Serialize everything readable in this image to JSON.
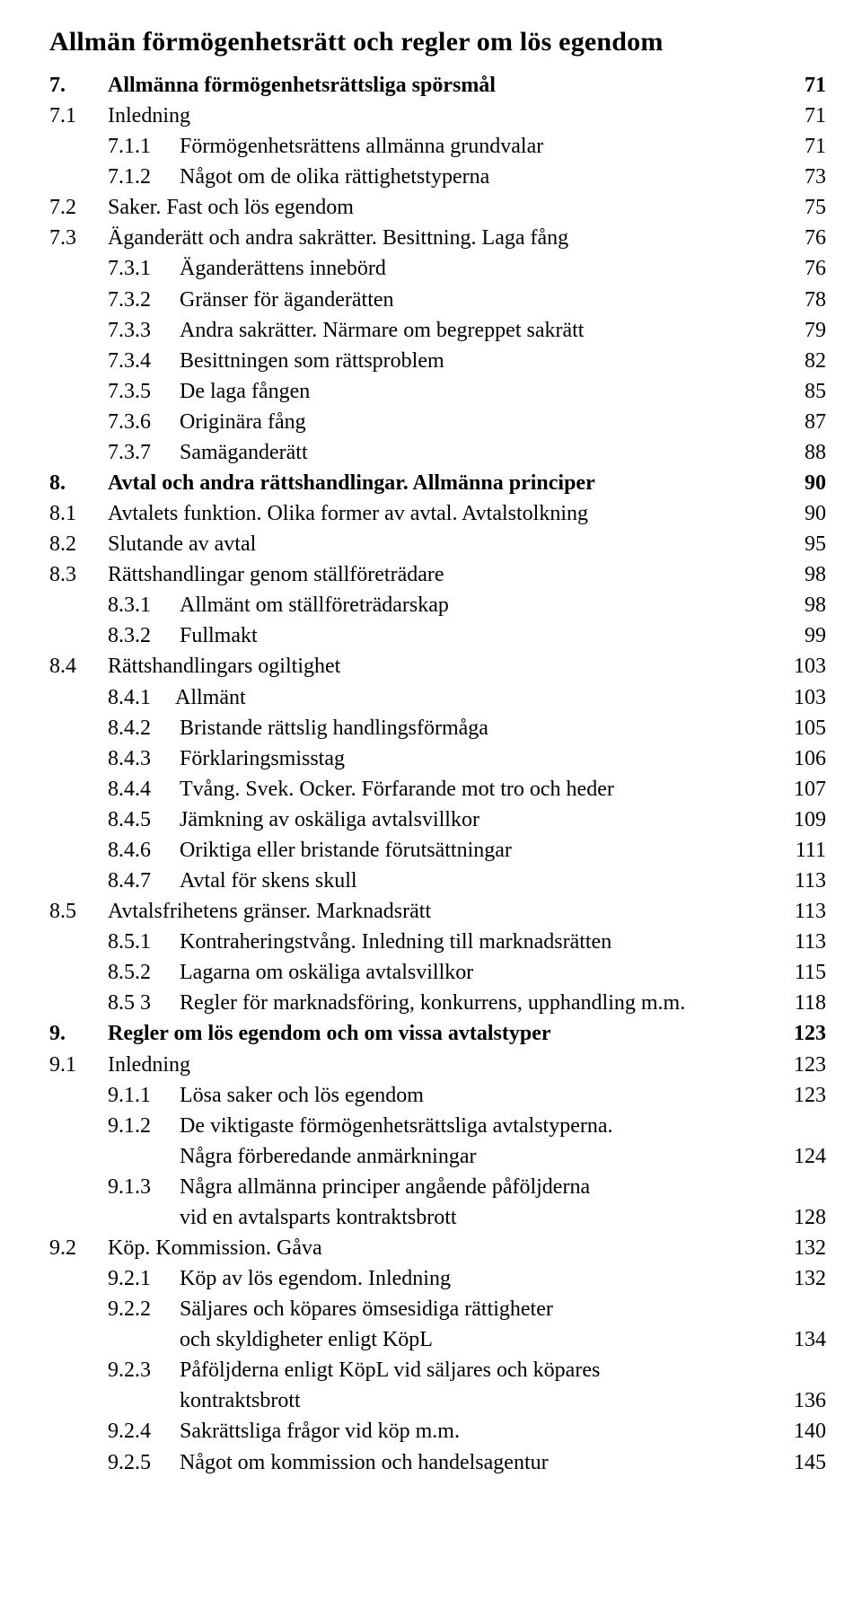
{
  "part_title": "Allmän förmögenhetsrätt och regler om lös egendom",
  "entries": [
    {
      "num": "7.",
      "label": "Allmänna förmögenhetsrättsliga spörsmål",
      "page": "71",
      "level": 0,
      "bold": true
    },
    {
      "num": "7.1",
      "label": "Inledning",
      "page": "71",
      "level": 1
    },
    {
      "num": "7.1.1",
      "label": "Förmögenhetsrättens allmänna grundvalar",
      "page": "71",
      "level": 2
    },
    {
      "num": "7.1.2",
      "label": "Något om de olika rättighetstyperna",
      "page": "73",
      "level": 2
    },
    {
      "num": "7.2",
      "label": "Saker. Fast och lös egendom",
      "page": "75",
      "level": 1
    },
    {
      "num": "7.3",
      "label": "Äganderätt och andra sakrätter. Besittning. Laga fång",
      "page": "76",
      "level": 1
    },
    {
      "num": "7.3.1",
      "label": "Äganderättens innebörd",
      "page": "76",
      "level": 2
    },
    {
      "num": "7.3.2",
      "label": "Gränser för äganderätten",
      "page": "78",
      "level": 2
    },
    {
      "num": "7.3.3",
      "label": "Andra sakrätter. Närmare om begreppet sakrätt",
      "page": "79",
      "level": 2
    },
    {
      "num": "7.3.4",
      "label": "Besittningen som rättsproblem",
      "page": "82",
      "level": 2
    },
    {
      "num": "7.3.5",
      "label": "De laga fången",
      "page": "85",
      "level": 2
    },
    {
      "num": "7.3.6",
      "label": "Originära fång",
      "page": "87",
      "level": 2
    },
    {
      "num": "7.3.7",
      "label": "Samäganderätt",
      "page": "88",
      "level": 2
    },
    {
      "num": "8.",
      "label": "Avtal och andra rättshandlingar. Allmänna principer",
      "page": "90",
      "level": 0,
      "bold": true
    },
    {
      "num": "8.1",
      "label": "Avtalets funktion. Olika former av avtal. Avtalstolkning",
      "page": "90",
      "level": 1
    },
    {
      "num": "8.2",
      "label": "Slutande av avtal",
      "page": "95",
      "level": 1
    },
    {
      "num": "8.3",
      "label": "Rättshandlingar genom ställföreträdare",
      "page": "98",
      "level": 1
    },
    {
      "num": "8.3.1",
      "label": "Allmänt om ställföreträdarskap",
      "page": "98",
      "level": 2
    },
    {
      "num": "8.3.2",
      "label": "Fullmakt",
      "page": "99",
      "level": 2
    },
    {
      "num": "8.4",
      "label": "Rättshandlingars ogiltighet",
      "page": "103",
      "level": 1
    },
    {
      "num": "8.4.1",
      "label": "Allmänt",
      "page": "103",
      "level": "2b"
    },
    {
      "num": "8.4.2",
      "label": "Bristande rättslig handlingsförmåga",
      "page": "105",
      "level": 2
    },
    {
      "num": "8.4.3",
      "label": "Förklaringsmisstag",
      "page": "106",
      "level": 2
    },
    {
      "num": "8.4.4",
      "label": "Tvång. Svek. Ocker. Förfarande mot tro och heder",
      "page": "107",
      "level": 2
    },
    {
      "num": "8.4.5",
      "label": "Jämkning av oskäliga avtalsvillkor",
      "page": "109",
      "level": 2
    },
    {
      "num": "8.4.6",
      "label": "Oriktiga eller bristande förutsättningar",
      "page": "111",
      "level": 2
    },
    {
      "num": "8.4.7",
      "label": "Avtal för skens skull",
      "page": "113",
      "level": 2
    },
    {
      "num": "8.5",
      "label": "Avtalsfrihetens gränser. Marknadsrätt",
      "page": "113",
      "level": 1
    },
    {
      "num": "8.5.1",
      "label": "Kontraheringstvång. Inledning till marknadsrätten",
      "page": "113",
      "level": 2
    },
    {
      "num": "8.5.2",
      "label": "Lagarna om oskäliga avtalsvillkor",
      "page": "115",
      "level": 2
    },
    {
      "num": "8.5 3",
      "label": "Regler för marknadsföring, konkurrens, upphandling m.m.",
      "page": "118",
      "level": 2
    },
    {
      "num": "9.",
      "label": "Regler om lös egendom och om vissa avtalstyper",
      "page": "123",
      "level": 0,
      "bold": true
    },
    {
      "num": "9.1",
      "label": "Inledning",
      "page": "123",
      "level": 1
    },
    {
      "num": "9.1.1",
      "label": "Lösa saker och lös egendom",
      "page": "123",
      "level": 2
    },
    {
      "num": "9.1.2",
      "label": "De viktigaste förmögenhetsrättsliga avtalstyperna.",
      "page": "",
      "level": 2
    },
    {
      "num": "",
      "label": "Några förberedande anmärkningar",
      "page": "124",
      "level": "cont"
    },
    {
      "num": "9.1.3",
      "label": "Några allmänna principer angående påföljderna",
      "page": "",
      "level": 2
    },
    {
      "num": "",
      "label": "vid en avtalsparts kontraktsbrott",
      "page": "128",
      "level": "cont"
    },
    {
      "num": "9.2",
      "label": "Köp. Kommission. Gåva",
      "page": "132",
      "level": 1
    },
    {
      "num": "9.2.1",
      "label": "Köp av lös egendom. Inledning",
      "page": "132",
      "level": 2
    },
    {
      "num": "9.2.2",
      "label": "Säljares och köpares ömsesidiga rättigheter",
      "page": "",
      "level": 2
    },
    {
      "num": "",
      "label": "och skyldigheter enligt KöpL",
      "page": "134",
      "level": "cont"
    },
    {
      "num": "9.2.3",
      "label": "Påföljderna enligt KöpL vid säljares och köpares",
      "page": "",
      "level": 2
    },
    {
      "num": "",
      "label": "kontraktsbrott",
      "page": "136",
      "level": "cont"
    },
    {
      "num": "9.2.4",
      "label": "Sakrättsliga frågor vid köp m.m.",
      "page": "140",
      "level": 2
    },
    {
      "num": "9.2.5",
      "label": "Något om kommission och handelsagentur",
      "page": "145",
      "level": 2
    }
  ]
}
